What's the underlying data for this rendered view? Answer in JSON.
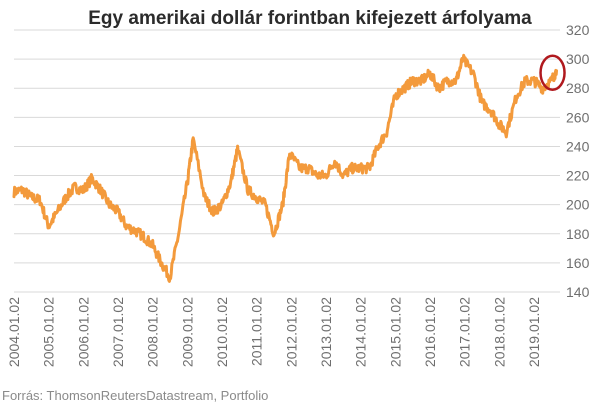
{
  "chart_data": {
    "type": "line",
    "title": "Egy amerikai dollár forintban kifejezett árfolyama",
    "xlabel": "",
    "ylabel": "",
    "source": "Forrás: ThomsonReutersDatastream, Portfolio",
    "ylim": [
      140,
      320
    ],
    "yticks": [
      140,
      160,
      180,
      200,
      220,
      240,
      260,
      280,
      300,
      320
    ],
    "xlim": [
      2004.0,
      2019.75
    ],
    "xticks": [
      "2004.01.02",
      "2005.01.02",
      "2006.01.02",
      "2007.01.02",
      "2008.01.02",
      "2009.01.02",
      "2010.01.02",
      "2011.01.02",
      "2012.01.02",
      "2013.01.02",
      "2014.01.02",
      "2015.01.02",
      "2016.01.02",
      "2017.01.02",
      "2018.01.02",
      "2019.01.02"
    ],
    "grid": "horizontal",
    "legend": "none",
    "line_color": "#f39a3c",
    "highlight_color": "#b0191e",
    "highlight_label": "latest value circled",
    "series": [
      {
        "x": [
          2004.0,
          2004.25,
          2004.5,
          2004.75,
          2005.0,
          2005.25,
          2005.5,
          2005.75,
          2006.0,
          2006.25,
          2006.5,
          2006.75,
          2007.0,
          2007.25,
          2007.5,
          2007.75,
          2008.0,
          2008.25,
          2008.5,
          2008.75,
          2009.0,
          2009.17,
          2009.5,
          2009.75,
          2010.0,
          2010.25,
          2010.45,
          2010.75,
          2011.0,
          2011.25,
          2011.5,
          2011.75,
          2011.95,
          2012.25,
          2012.5,
          2012.75,
          2013.0,
          2013.25,
          2013.5,
          2013.75,
          2014.0,
          2014.25,
          2014.5,
          2014.75,
          2015.0,
          2015.25,
          2015.5,
          2015.75,
          2016.0,
          2016.25,
          2016.5,
          2016.75,
          2016.95,
          2017.25,
          2017.5,
          2017.75,
          2018.0,
          2018.2,
          2018.5,
          2018.75,
          2019.0,
          2019.25,
          2019.5,
          2019.65
        ],
        "y": [
          209,
          210,
          205,
          203,
          185,
          195,
          205,
          212,
          210,
          218,
          210,
          200,
          195,
          185,
          182,
          178,
          172,
          160,
          150,
          180,
          215,
          245,
          205,
          195,
          200,
          215,
          238,
          210,
          205,
          200,
          180,
          200,
          235,
          225,
          225,
          220,
          220,
          230,
          220,
          225,
          225,
          225,
          240,
          250,
          275,
          280,
          285,
          285,
          290,
          280,
          285,
          285,
          300,
          290,
          270,
          265,
          255,
          250,
          275,
          285,
          285,
          280,
          285,
          292
        ]
      }
    ]
  }
}
